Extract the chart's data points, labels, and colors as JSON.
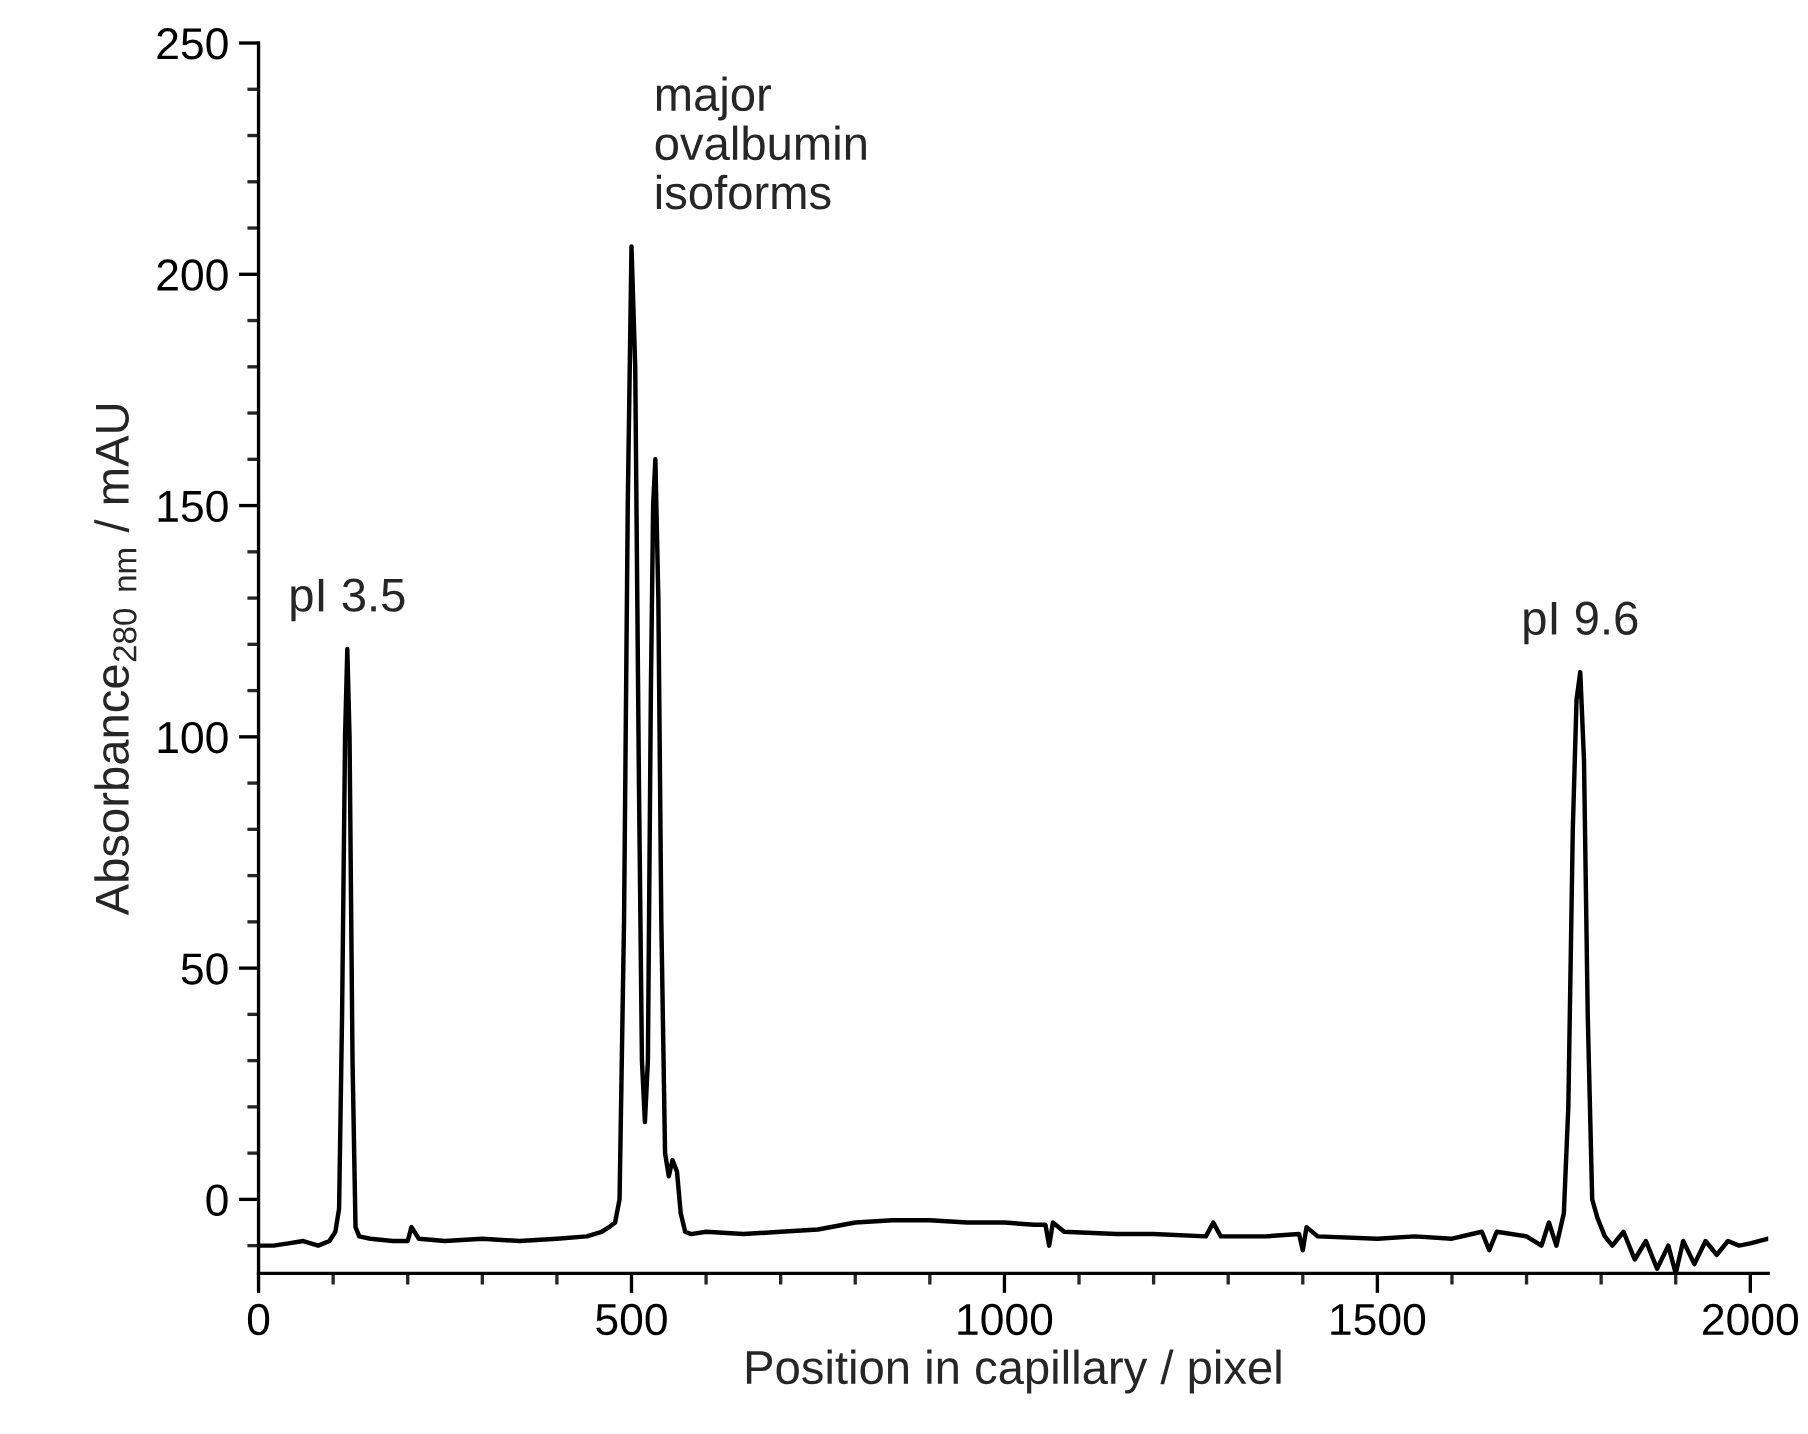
{
  "chart_data": {
    "type": "line",
    "xlabel": "Position in capillary / pixel",
    "ylabel": "Absorbance$_{280 nm}$ / mAU",
    "xlim": [
      0,
      2024
    ],
    "ylim": [
      -16,
      250
    ],
    "xticks": [
      0,
      500,
      1000,
      1500,
      2000
    ],
    "yticks": [
      0,
      50,
      100,
      150,
      200,
      250
    ],
    "grid": false,
    "legend": false,
    "marker": "none",
    "line_style": "solid",
    "series": [
      {
        "color": "#000000",
        "x": [
          0,
          20,
          40,
          60,
          80,
          95,
          103,
          108,
          112,
          116,
          119,
          122,
          126,
          130,
          135,
          150,
          180,
          200,
          205,
          215,
          250,
          300,
          350,
          400,
          440,
          460,
          470,
          478,
          484,
          490,
          495,
          500,
          505,
          510,
          514,
          518,
          522,
          526,
          529,
          532,
          536,
          540,
          545,
          550,
          555,
          561,
          566,
          572,
          580,
          600,
          650,
          700,
          750,
          800,
          850,
          900,
          950,
          1000,
          1040,
          1055,
          1060,
          1065,
          1080,
          1150,
          1200,
          1270,
          1280,
          1290,
          1350,
          1395,
          1400,
          1405,
          1420,
          1500,
          1550,
          1600,
          1640,
          1650,
          1660,
          1700,
          1720,
          1730,
          1740,
          1750,
          1756,
          1762,
          1767,
          1772,
          1777,
          1782,
          1788,
          1795,
          1805,
          1815,
          1830,
          1845,
          1860,
          1875,
          1890,
          1900,
          1910,
          1925,
          1940,
          1955,
          1970,
          1985,
          2000,
          2024
        ],
        "values": [
          -10,
          -10,
          -9.5,
          -9,
          -10,
          -9,
          -7,
          -2,
          40,
          100,
          119,
          100,
          30,
          -6,
          -8,
          -8.5,
          -9,
          -9,
          -6,
          -8.5,
          -9,
          -8.5,
          -9,
          -8.5,
          -8,
          -7,
          -6,
          -5,
          0,
          60,
          150,
          206,
          180,
          90,
          30,
          16.7,
          30,
          110,
          150,
          160,
          130,
          60,
          10,
          5,
          8.5,
          6,
          -3,
          -7,
          -7.5,
          -7,
          -7.5,
          -7,
          -6.5,
          -5,
          -4.5,
          -4.5,
          -5,
          -5,
          -5.5,
          -5.5,
          -10,
          -5,
          -7,
          -7.5,
          -7.5,
          -8,
          -5,
          -8,
          -8,
          -7.5,
          -11,
          -6,
          -8,
          -8.5,
          -8,
          -8.5,
          -7,
          -11,
          -7,
          -8,
          -10,
          -5,
          -10,
          -3,
          20,
          80,
          108,
          114,
          95,
          40,
          0,
          -4,
          -8,
          -10,
          -7,
          -13,
          -9,
          -15,
          -10,
          -16,
          -9,
          -14,
          -9,
          -12,
          -9,
          -10,
          -9.5,
          -8.5
        ]
      }
    ],
    "annotations": [
      {
        "text": "pI 3.5",
        "x": 119,
        "y": 119
      },
      {
        "text": "major\novalbumin\nisoforms",
        "x": 500,
        "y": 206
      },
      {
        "text": "pI 9.6",
        "x": 1772,
        "y": 114
      }
    ]
  }
}
